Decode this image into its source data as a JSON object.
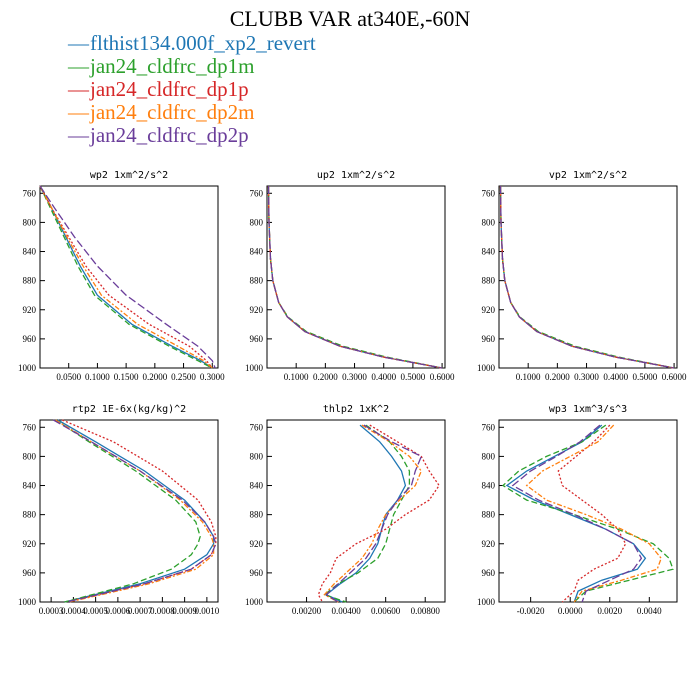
{
  "title": "CLUBB VAR at340E,-60N",
  "legend": [
    {
      "label": "flthist134.000f_xp2_revert",
      "color": "#1f77b4",
      "dash": ""
    },
    {
      "label": "jan24_cldfrc_dp1m",
      "color": "#2ca02c",
      "dash": "6,3"
    },
    {
      "label": "jan24_cldfrc_dp1p",
      "color": "#d62728",
      "dash": "2,2"
    },
    {
      "label": "jan24_cldfrc_dp2m",
      "color": "#ff7f0e",
      "dash": "5,2,2,2"
    },
    {
      "label": "jan24_cldfrc_dp2p",
      "color": "#6a3d9a",
      "dash": "8,3"
    }
  ],
  "chart_data": [
    {
      "type": "line",
      "title": "wp2  1xm^2/s^2",
      "xlim": [
        0,
        0.31
      ],
      "ylim": [
        1000,
        750
      ],
      "y_reversed": true,
      "xticks": [
        "0.0500",
        "0.1000",
        "0.1500",
        "0.2000",
        "0.2500",
        "0.3000"
      ],
      "xtick_values": [
        0.05,
        0.1,
        0.15,
        0.2,
        0.25,
        0.3
      ],
      "yticks": [
        "760",
        "800",
        "840",
        "880",
        "920",
        "960",
        "1000"
      ],
      "ytick_values": [
        760,
        800,
        840,
        880,
        920,
        960,
        1000
      ],
      "y": [
        750,
        780,
        820,
        860,
        900,
        940,
        970,
        990,
        1000
      ],
      "series": [
        {
          "name": "flthist134.000f_xp2_revert",
          "values": [
            0.0,
            0.02,
            0.045,
            0.07,
            0.1,
            0.16,
            0.23,
            0.28,
            0.3
          ]
        },
        {
          "name": "jan24_cldfrc_dp1m",
          "values": [
            0.0,
            0.018,
            0.042,
            0.066,
            0.095,
            0.155,
            0.225,
            0.275,
            0.3
          ]
        },
        {
          "name": "jan24_cldfrc_dp1p",
          "values": [
            0.0,
            0.02,
            0.05,
            0.08,
            0.12,
            0.19,
            0.26,
            0.29,
            0.3
          ]
        },
        {
          "name": "jan24_cldfrc_dp2m",
          "values": [
            0.0,
            0.02,
            0.047,
            0.075,
            0.107,
            0.17,
            0.24,
            0.285,
            0.3
          ]
        },
        {
          "name": "jan24_cldfrc_dp2p",
          "values": [
            0.0,
            0.025,
            0.06,
            0.1,
            0.15,
            0.22,
            0.275,
            0.3,
            0.305
          ]
        }
      ]
    },
    {
      "type": "line",
      "title": "up2  1xm^2/s^2",
      "xlim": [
        0,
        0.61
      ],
      "ylim": [
        1000,
        750
      ],
      "y_reversed": true,
      "xticks": [
        "0.1000",
        "0.2000",
        "0.3000",
        "0.4000",
        "0.5000",
        "0.6000"
      ],
      "xtick_values": [
        0.1,
        0.2,
        0.3,
        0.4,
        0.5,
        0.6
      ],
      "yticks": [
        "760",
        "800",
        "840",
        "880",
        "920",
        "960",
        "1000"
      ],
      "ytick_values": [
        760,
        800,
        840,
        880,
        920,
        960,
        1000
      ],
      "y": [
        750,
        800,
        850,
        880,
        910,
        930,
        950,
        970,
        985,
        1000
      ],
      "series": [
        {
          "name": "flthist134.000f_xp2_revert",
          "values": [
            0.005,
            0.007,
            0.012,
            0.02,
            0.04,
            0.07,
            0.13,
            0.25,
            0.4,
            0.6
          ]
        },
        {
          "name": "jan24_cldfrc_dp1m",
          "values": [
            0.005,
            0.007,
            0.012,
            0.02,
            0.04,
            0.072,
            0.135,
            0.26,
            0.41,
            0.6
          ]
        },
        {
          "name": "jan24_cldfrc_dp1p",
          "values": [
            0.005,
            0.007,
            0.012,
            0.02,
            0.04,
            0.07,
            0.13,
            0.25,
            0.4,
            0.6
          ]
        },
        {
          "name": "jan24_cldfrc_dp2m",
          "values": [
            0.005,
            0.007,
            0.012,
            0.02,
            0.04,
            0.07,
            0.13,
            0.25,
            0.4,
            0.6
          ]
        },
        {
          "name": "jan24_cldfrc_dp2p",
          "values": [
            0.005,
            0.007,
            0.012,
            0.02,
            0.04,
            0.07,
            0.13,
            0.25,
            0.4,
            0.6
          ]
        }
      ]
    },
    {
      "type": "line",
      "title": "vp2  1xm^2/s^2",
      "xlim": [
        0,
        0.61
      ],
      "ylim": [
        1000,
        750
      ],
      "y_reversed": true,
      "xticks": [
        "0.1000",
        "0.2000",
        "0.3000",
        "0.4000",
        "0.5000",
        "0.6000"
      ],
      "xtick_values": [
        0.1,
        0.2,
        0.3,
        0.4,
        0.5,
        0.6
      ],
      "yticks": [
        "760",
        "800",
        "840",
        "880",
        "920",
        "960",
        "1000"
      ],
      "ytick_values": [
        760,
        800,
        840,
        880,
        920,
        960,
        1000
      ],
      "y": [
        750,
        800,
        850,
        880,
        910,
        930,
        950,
        970,
        985,
        1000
      ],
      "series": [
        {
          "name": "flthist134.000f_xp2_revert",
          "values": [
            0.005,
            0.007,
            0.012,
            0.02,
            0.04,
            0.07,
            0.13,
            0.25,
            0.4,
            0.6
          ]
        },
        {
          "name": "jan24_cldfrc_dp1m",
          "values": [
            0.005,
            0.007,
            0.012,
            0.02,
            0.04,
            0.072,
            0.135,
            0.26,
            0.41,
            0.6
          ]
        },
        {
          "name": "jan24_cldfrc_dp1p",
          "values": [
            0.005,
            0.007,
            0.012,
            0.02,
            0.04,
            0.07,
            0.13,
            0.25,
            0.4,
            0.6
          ]
        },
        {
          "name": "jan24_cldfrc_dp2m",
          "values": [
            0.005,
            0.007,
            0.012,
            0.02,
            0.04,
            0.07,
            0.13,
            0.25,
            0.4,
            0.6
          ]
        },
        {
          "name": "jan24_cldfrc_dp2p",
          "values": [
            0.005,
            0.007,
            0.012,
            0.02,
            0.04,
            0.07,
            0.13,
            0.25,
            0.4,
            0.6
          ]
        }
      ]
    },
    {
      "type": "line",
      "title": "rtp2  1E-6x(kg/kg)^2",
      "xlim": [
        0.00025,
        0.00105
      ],
      "ylim": [
        1000,
        750
      ],
      "y_reversed": true,
      "xticks": [
        "0.0003",
        "0.0004",
        "0.0005",
        "0.0006",
        "0.0007",
        "0.0008",
        "0.0009",
        "0.0010"
      ],
      "xtick_values": [
        0.0003,
        0.0004,
        0.0005,
        0.0006,
        0.0007,
        0.0008,
        0.0009,
        0.001
      ],
      "yticks": [
        "760",
        "800",
        "840",
        "880",
        "920",
        "960",
        "1000"
      ],
      "ytick_values": [
        760,
        800,
        840,
        880,
        920,
        960,
        1000
      ],
      "y": [
        750,
        780,
        820,
        860,
        890,
        910,
        920,
        935,
        955,
        975,
        1000
      ],
      "series": [
        {
          "name": "flthist134.000f_xp2_revert",
          "values": [
            0.00033,
            0.0005,
            0.00072,
            0.0009,
            0.00099,
            0.00103,
            0.00103,
            0.001,
            0.0009,
            0.0007,
            0.00036
          ]
        },
        {
          "name": "jan24_cldfrc_dp1m",
          "values": [
            0.00032,
            0.00047,
            0.00068,
            0.00086,
            0.00095,
            0.00097,
            0.00096,
            0.00093,
            0.00084,
            0.00067,
            0.00036
          ]
        },
        {
          "name": "jan24_cldfrc_dp1p",
          "values": [
            0.00035,
            0.00058,
            0.0008,
            0.00096,
            0.00102,
            0.00104,
            0.00104,
            0.00102,
            0.00093,
            0.00072,
            0.00037
          ]
        },
        {
          "name": "jan24_cldfrc_dp2m",
          "values": [
            0.00032,
            0.00048,
            0.0007,
            0.00088,
            0.00098,
            0.00102,
            0.00103,
            0.00103,
            0.00095,
            0.00074,
            0.00038
          ]
        },
        {
          "name": "jan24_cldfrc_dp2p",
          "values": [
            0.00031,
            0.00048,
            0.0007,
            0.00089,
            0.00099,
            0.00103,
            0.00104,
            0.00102,
            0.00093,
            0.00072,
            0.00037
          ]
        }
      ]
    },
    {
      "type": "line",
      "title": "thlp2  1xK^2",
      "xlim": [
        0.0,
        0.009
      ],
      "ylim": [
        1000,
        750
      ],
      "y_reversed": true,
      "xticks": [
        "0.00200",
        "0.00400",
        "0.00600",
        "0.00800"
      ],
      "xtick_values": [
        0.002,
        0.004,
        0.006,
        0.008
      ],
      "yticks": [
        "760",
        "800",
        "840",
        "880",
        "920",
        "960",
        "1000"
      ],
      "ytick_values": [
        760,
        800,
        840,
        880,
        920,
        960,
        1000
      ],
      "y": [
        757,
        780,
        800,
        820,
        840,
        860,
        880,
        900,
        920,
        940,
        960,
        975,
        990,
        1000
      ],
      "series": [
        {
          "name": "flthist134.000f_xp2_revert",
          "values": [
            0.0047,
            0.0057,
            0.0063,
            0.0068,
            0.007,
            0.0066,
            0.006,
            0.0058,
            0.0056,
            0.0052,
            0.0045,
            0.0037,
            0.003,
            0.0038
          ]
        },
        {
          "name": "jan24_cldfrc_dp1m",
          "values": [
            0.005,
            0.0062,
            0.0068,
            0.0072,
            0.0072,
            0.0068,
            0.0064,
            0.0062,
            0.006,
            0.0056,
            0.0046,
            0.0036,
            0.0029,
            0.004
          ]
        },
        {
          "name": "jan24_cldfrc_dp1p",
          "values": [
            0.0052,
            0.0066,
            0.0078,
            0.0082,
            0.0087,
            0.0082,
            0.007,
            0.006,
            0.0045,
            0.0035,
            0.0032,
            0.0028,
            0.0026,
            0.0028
          ]
        },
        {
          "name": "jan24_cldfrc_dp2m",
          "values": [
            0.0048,
            0.0062,
            0.0072,
            0.0078,
            0.0075,
            0.0067,
            0.006,
            0.0056,
            0.0053,
            0.0048,
            0.004,
            0.0034,
            0.0029,
            0.0036
          ]
        },
        {
          "name": "jan24_cldfrc_dp2p",
          "values": [
            0.0049,
            0.0063,
            0.0078,
            0.0075,
            0.0073,
            0.0066,
            0.0061,
            0.0058,
            0.0055,
            0.005,
            0.0042,
            0.0036,
            0.003,
            0.0036
          ]
        }
      ]
    },
    {
      "type": "line",
      "title": "wp3  1xm^3/s^3",
      "xlim": [
        -0.0036,
        0.0054
      ],
      "ylim": [
        1000,
        750
      ],
      "y_reversed": true,
      "xticks": [
        "-0.0020",
        "0.0000",
        "0.0020",
        "0.0040"
      ],
      "xtick_values": [
        -0.002,
        0.0,
        0.002,
        0.004
      ],
      "yticks": [
        "760",
        "800",
        "840",
        "880",
        "920",
        "960",
        "1000"
      ],
      "ytick_values": [
        760,
        800,
        840,
        880,
        920,
        960,
        1000
      ],
      "y": [
        757,
        780,
        800,
        820,
        840,
        860,
        880,
        900,
        920,
        940,
        955,
        970,
        985,
        1000
      ],
      "series": [
        {
          "name": "flthist134.000f_xp2_revert",
          "values": [
            0.0016,
            0.0006,
            -0.0008,
            -0.0022,
            -0.0032,
            -0.0018,
            0.0,
            0.0018,
            0.0032,
            0.0038,
            0.0034,
            0.0016,
            0.0004,
            0.0002
          ]
        },
        {
          "name": "jan24_cldfrc_dp1m",
          "values": [
            0.0018,
            0.0006,
            -0.0012,
            -0.0026,
            -0.0034,
            -0.0022,
            0.0002,
            0.0024,
            0.0042,
            0.005,
            0.0052,
            0.003,
            0.0008,
            0.0002
          ]
        },
        {
          "name": "jan24_cldfrc_dp1p",
          "values": [
            0.002,
            0.0012,
            0.0003,
            -0.0006,
            -0.0004,
            0.0006,
            0.0016,
            0.0024,
            0.0028,
            0.0024,
            0.0012,
            0.0004,
            0.0002,
            -0.0004
          ]
        },
        {
          "name": "jan24_cldfrc_dp2m",
          "values": [
            0.0022,
            0.0014,
            0.0,
            -0.0014,
            -0.0022,
            -0.0012,
            0.0008,
            0.0026,
            0.004,
            0.0046,
            0.0044,
            0.0026,
            0.0006,
            0.0002
          ]
        },
        {
          "name": "jan24_cldfrc_dp2p",
          "values": [
            0.0015,
            0.0005,
            -0.0007,
            -0.002,
            -0.0029,
            -0.0016,
            0.0002,
            0.0018,
            0.0032,
            0.0036,
            0.0032,
            0.002,
            0.0008,
            0.0006
          ]
        }
      ]
    }
  ]
}
